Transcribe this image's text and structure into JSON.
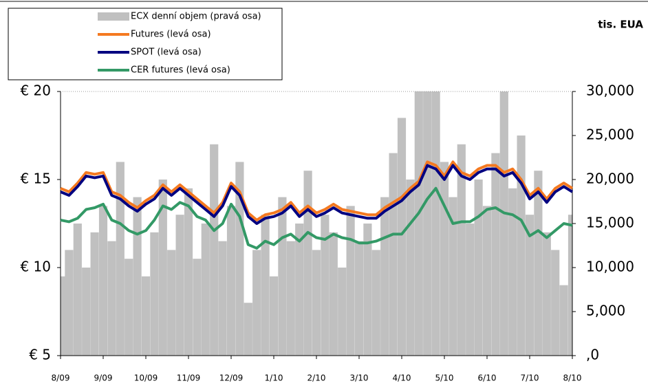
{
  "chart_data": {
    "type": "line",
    "unit_label": "tis. EUA",
    "xlim": [
      0,
      12
    ],
    "xticks": [
      {
        "value": 0,
        "label": "8/09"
      },
      {
        "value": 1,
        "label": "9/09"
      },
      {
        "value": 2,
        "label": "10/09"
      },
      {
        "value": 3,
        "label": "11/09"
      },
      {
        "value": 4,
        "label": "12/09"
      },
      {
        "value": 5,
        "label": "1/10"
      },
      {
        "value": 6,
        "label": "2/10"
      },
      {
        "value": 7,
        "label": "3/10"
      },
      {
        "value": 8,
        "label": "4/10"
      },
      {
        "value": 9,
        "label": "5/10"
      },
      {
        "value": 10,
        "label": "6/10"
      },
      {
        "value": 11,
        "label": "7/10"
      },
      {
        "value": 12,
        "label": "8/10"
      }
    ],
    "ylim": [
      5,
      20
    ],
    "yticks": [
      {
        "value": 5,
        "label": "€ 5"
      },
      {
        "value": 10,
        "label": "€ 10"
      },
      {
        "value": 15,
        "label": "€ 15"
      },
      {
        "value": 20,
        "label": "€ 20"
      }
    ],
    "y2lim": [
      0,
      30000
    ],
    "y2ticks": [
      {
        "value": 0,
        "label": ",0"
      },
      {
        "value": 5000,
        "label": "5,000"
      },
      {
        "value": 10000,
        "label": "10,000"
      },
      {
        "value": 15000,
        "label": "15,000"
      },
      {
        "value": 20000,
        "label": "20,000"
      },
      {
        "value": 25000,
        "label": "25,000"
      },
      {
        "value": 30000,
        "label": "30,000"
      }
    ],
    "x": [
      0,
      0.2,
      0.4,
      0.6,
      0.8,
      1,
      1.2,
      1.4,
      1.6,
      1.8,
      2,
      2.2,
      2.4,
      2.6,
      2.8,
      3,
      3.2,
      3.4,
      3.6,
      3.8,
      4,
      4.2,
      4.4,
      4.6,
      4.8,
      5,
      5.2,
      5.4,
      5.6,
      5.8,
      6,
      6.2,
      6.4,
      6.6,
      6.8,
      7,
      7.2,
      7.4,
      7.6,
      7.8,
      8,
      8.2,
      8.4,
      8.6,
      8.8,
      9,
      9.2,
      9.4,
      9.6,
      9.8,
      10,
      10.2,
      10.4,
      10.6,
      10.8,
      11,
      11.2,
      11.4,
      11.6,
      11.8,
      12
    ],
    "series": [
      {
        "name": "ECX denní objem (pravá osa)",
        "type": "bar",
        "axis": "y2",
        "color": "#c0c0c0",
        "values": [
          9000,
          12000,
          15000,
          10000,
          14000,
          17000,
          13000,
          22000,
          11000,
          18000,
          9000,
          14000,
          20000,
          12000,
          16000,
          19000,
          11000,
          15000,
          24000,
          13000,
          17000,
          22000,
          6000,
          12000,
          16000,
          9000,
          18000,
          13000,
          15000,
          21000,
          12000,
          16000,
          14000,
          10000,
          17000,
          13000,
          15000,
          12000,
          18000,
          23000,
          27000,
          20000,
          30000,
          30000,
          30000,
          22000,
          18000,
          24000,
          15000,
          20000,
          17000,
          23000,
          30000,
          19000,
          25000,
          16000,
          21000,
          14000,
          12000,
          8000,
          16000
        ]
      },
      {
        "name": "Futures (levá osa)",
        "type": "line",
        "color": "#f47920",
        "values": [
          14.5,
          14.3,
          14.8,
          15.4,
          15.3,
          15.4,
          14.3,
          14.1,
          13.7,
          13.4,
          13.8,
          14.1,
          14.7,
          14.3,
          14.7,
          14.3,
          13.9,
          13.5,
          13.1,
          13.7,
          14.8,
          14.3,
          13.1,
          12.7,
          13.0,
          13.1,
          13.3,
          13.7,
          13.1,
          13.5,
          13.1,
          13.3,
          13.6,
          13.3,
          13.2,
          13.1,
          13.0,
          13.0,
          13.4,
          13.7,
          14.0,
          14.5,
          14.9,
          16.0,
          15.8,
          15.2,
          16.0,
          15.4,
          15.2,
          15.6,
          15.8,
          15.8,
          15.4,
          15.6,
          15.0,
          14.1,
          14.5,
          13.9,
          14.5,
          14.8,
          14.5
        ]
      },
      {
        "name": "SPOT (levá osa)",
        "type": "line",
        "color": "#000080",
        "values": [
          14.3,
          14.1,
          14.6,
          15.2,
          15.1,
          15.2,
          14.1,
          13.9,
          13.5,
          13.2,
          13.6,
          13.9,
          14.5,
          14.1,
          14.5,
          14.1,
          13.7,
          13.3,
          12.9,
          13.5,
          14.6,
          14.1,
          12.9,
          12.5,
          12.8,
          12.9,
          13.1,
          13.5,
          12.9,
          13.3,
          12.9,
          13.1,
          13.4,
          13.1,
          13.0,
          12.9,
          12.8,
          12.8,
          13.2,
          13.5,
          13.8,
          14.3,
          14.7,
          15.8,
          15.6,
          15.0,
          15.8,
          15.2,
          15.0,
          15.4,
          15.6,
          15.6,
          15.2,
          15.4,
          14.8,
          13.9,
          14.3,
          13.7,
          14.3,
          14.6,
          14.3
        ]
      },
      {
        "name": "CER futures (levá osa)",
        "type": "line",
        "color": "#339966",
        "values": [
          12.7,
          12.6,
          12.8,
          13.3,
          13.4,
          13.6,
          12.7,
          12.5,
          12.1,
          11.9,
          12.1,
          12.7,
          13.5,
          13.3,
          13.7,
          13.5,
          12.9,
          12.7,
          12.1,
          12.5,
          13.6,
          12.9,
          11.3,
          11.1,
          11.5,
          11.3,
          11.7,
          11.9,
          11.5,
          12.0,
          11.7,
          11.6,
          11.9,
          11.7,
          11.6,
          11.4,
          11.4,
          11.5,
          11.7,
          11.9,
          11.9,
          12.5,
          13.1,
          13.9,
          14.5,
          13.5,
          12.5,
          12.6,
          12.6,
          12.9,
          13.3,
          13.4,
          13.1,
          13.0,
          12.7,
          11.8,
          12.1,
          11.7,
          12.1,
          12.5,
          12.4
        ]
      }
    ]
  }
}
